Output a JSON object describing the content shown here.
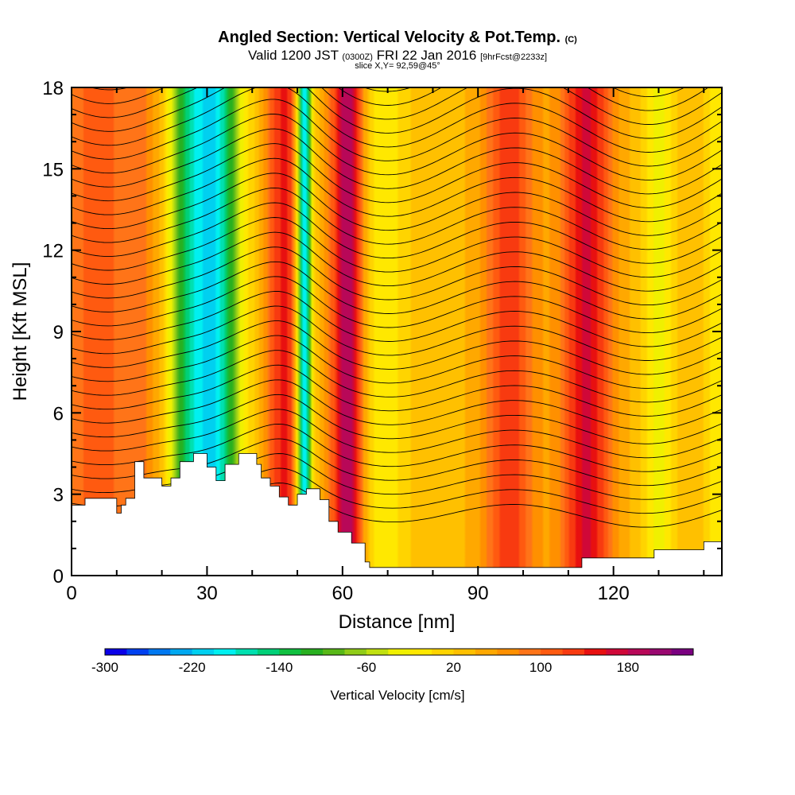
{
  "header": {
    "title_main": "Angled Section: Vertical Velocity & Pot.Temp.",
    "title_tag": "(C)",
    "valid_prefix": "Valid 1200 JST",
    "valid_utc": "(0300Z)",
    "valid_date": "FRI 22 Jan 2016",
    "forecast": "[9hrFcst@2233z]",
    "slice": "slice X,Y= 92,59@45°"
  },
  "colorbar": {
    "label": "Vertical Velocity [cm/s]",
    "tick_labels": [
      "-300",
      "-220",
      "-140",
      "-60",
      "20",
      "100",
      "180"
    ],
    "tick_values": [
      -300,
      -220,
      -140,
      -60,
      20,
      100,
      180
    ],
    "min": -300,
    "max": 240,
    "colors": [
      "#0a00e8",
      "#0040f0",
      "#0078f0",
      "#00a8f0",
      "#00d0f0",
      "#00f0f0",
      "#00e0b0",
      "#00d078",
      "#10c040",
      "#28b020",
      "#58b818",
      "#90cc18",
      "#c0e010",
      "#f0f000",
      "#ffe800",
      "#ffd400",
      "#ffc000",
      "#ffa800",
      "#ff9000",
      "#ff7418",
      "#ff5a10",
      "#f83a10",
      "#e81010",
      "#d00838",
      "#b80858",
      "#9a0870",
      "#7a0080"
    ]
  },
  "chart_data": {
    "type": "heatmap",
    "title": "Angled Section: Vertical Velocity & Pot.Temp.",
    "xlabel": "Distance [nm]",
    "ylabel": "Height [Kft MSL]",
    "xlim": [
      0,
      144
    ],
    "ylim": [
      0,
      18
    ],
    "x_ticks": [
      0,
      30,
      60,
      90,
      120
    ],
    "y_ticks": [
      0,
      3,
      6,
      9,
      12,
      15,
      18
    ],
    "velocity_bands": [
      {
        "x": 4,
        "w": 4,
        "v": 60
      },
      {
        "x": 14,
        "w": 6,
        "v": 55
      },
      {
        "x": 27,
        "w": 4,
        "v": -200
      },
      {
        "x": 33,
        "w": 3,
        "v": -150
      },
      {
        "x": 39,
        "w": 3,
        "v": -20
      },
      {
        "x": 47,
        "w": 3,
        "v": 110
      },
      {
        "x": 51.5,
        "w": 1.2,
        "v": -260
      },
      {
        "x": 61,
        "w": 2.5,
        "v": 170
      },
      {
        "x": 69,
        "w": 4,
        "v": -50
      },
      {
        "x": 97,
        "w": 4,
        "v": 100
      },
      {
        "x": 114,
        "w": 4,
        "v": 130
      },
      {
        "x": 130,
        "w": 2.5,
        "v": -60
      },
      {
        "x": 143,
        "w": 2,
        "v": -50
      }
    ],
    "terrain_kft": [
      [
        0,
        2.6
      ],
      [
        3,
        2.6
      ],
      [
        3,
        2.85
      ],
      [
        10,
        2.85
      ],
      [
        10,
        2.3
      ],
      [
        11,
        2.3
      ],
      [
        11,
        2.6
      ],
      [
        12,
        2.6
      ],
      [
        12,
        2.85
      ],
      [
        14,
        2.85
      ],
      [
        14,
        3.2
      ],
      [
        14,
        3.2
      ],
      [
        14,
        4.2
      ],
      [
        16,
        4.2
      ],
      [
        16,
        3.6
      ],
      [
        20,
        3.6
      ],
      [
        20,
        3.3
      ],
      [
        22,
        3.3
      ],
      [
        22,
        3.6
      ],
      [
        24,
        3.6
      ],
      [
        24,
        4.2
      ],
      [
        27,
        4.2
      ],
      [
        27,
        4.5
      ],
      [
        30,
        4.5
      ],
      [
        30,
        4.0
      ],
      [
        32,
        4.0
      ],
      [
        32,
        3.5
      ],
      [
        34,
        3.5
      ],
      [
        34,
        4.1
      ],
      [
        37,
        4.1
      ],
      [
        37,
        4.5
      ],
      [
        41,
        4.5
      ],
      [
        41,
        4.1
      ],
      [
        42,
        4.1
      ],
      [
        42,
        3.6
      ],
      [
        44,
        3.6
      ],
      [
        44,
        3.3
      ],
      [
        46,
        3.3
      ],
      [
        46,
        2.9
      ],
      [
        48,
        2.9
      ],
      [
        48,
        2.6
      ],
      [
        50,
        2.6
      ],
      [
        50,
        3.0
      ],
      [
        52,
        3.0
      ],
      [
        52,
        3.2
      ],
      [
        55,
        3.2
      ],
      [
        55,
        2.8
      ],
      [
        57,
        2.8
      ],
      [
        57,
        2.0
      ],
      [
        59,
        2.0
      ],
      [
        59,
        1.6
      ],
      [
        62,
        1.6
      ],
      [
        62,
        1.2
      ],
      [
        65,
        1.2
      ],
      [
        65,
        0.5
      ],
      [
        66,
        0.5
      ],
      [
        66,
        0.3
      ],
      [
        113,
        0.3
      ],
      [
        113,
        0.65
      ],
      [
        129,
        0.65
      ],
      [
        129,
        0.95
      ],
      [
        140,
        0.95
      ],
      [
        140,
        1.25
      ],
      [
        144,
        1.25
      ]
    ]
  }
}
